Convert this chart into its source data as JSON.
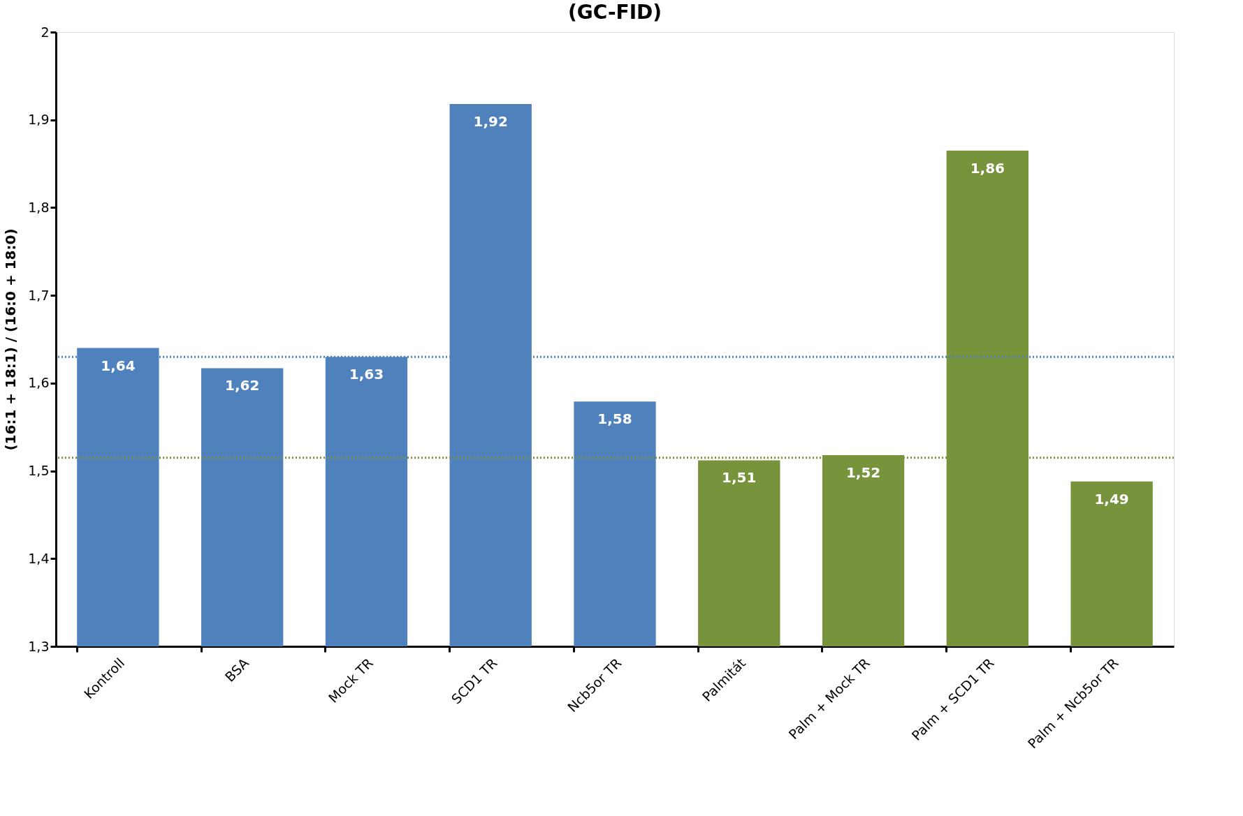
{
  "chart_data": {
    "type": "bar",
    "title": "(GC-FID)",
    "ylabel": "(16:1 + 18:1) / (16:0 + 18:0)",
    "categories": [
      "Kontroll",
      "BSA",
      "Mock TR",
      "SCD1 TR",
      "Ncb5or TR",
      "Palmitát",
      "Palm + Mock TR",
      "Palm + SCD1 TR",
      "Palm + Ncb5or TR"
    ],
    "values": [
      1.64,
      1.617,
      1.63,
      1.918,
      1.579,
      1.512,
      1.518,
      1.865,
      1.488
    ],
    "value_labels": [
      "1,64",
      "1,62",
      "1,63",
      "1,92",
      "1,58",
      "1,51",
      "1,52",
      "1,86",
      "1,49"
    ],
    "colors": [
      "#4f81bd",
      "#4f81bd",
      "#4f81bd",
      "#4f81bd",
      "#4f81bd",
      "#77933c",
      "#77933c",
      "#77933c",
      "#77933c"
    ],
    "ylim": [
      1.3,
      2
    ],
    "yticks": [
      {
        "value": 1.3,
        "label": "1,3"
      },
      {
        "value": 1.4,
        "label": "1,4"
      },
      {
        "value": 1.5,
        "label": "1,5"
      },
      {
        "value": 1.6,
        "label": "1,6"
      },
      {
        "value": 1.7,
        "label": "1,7"
      },
      {
        "value": 1.8,
        "label": "1,8"
      },
      {
        "value": 1.9,
        "label": "1,9"
      },
      {
        "value": 2,
        "label": "2"
      }
    ],
    "ref_lines": [
      {
        "axis": "y",
        "value": 1.63,
        "color": "#4f81bd",
        "line_style": "dotted"
      },
      {
        "axis": "y",
        "value": 1.515,
        "color": "#77933c",
        "line_style": "dotted"
      }
    ],
    "grid": false
  }
}
